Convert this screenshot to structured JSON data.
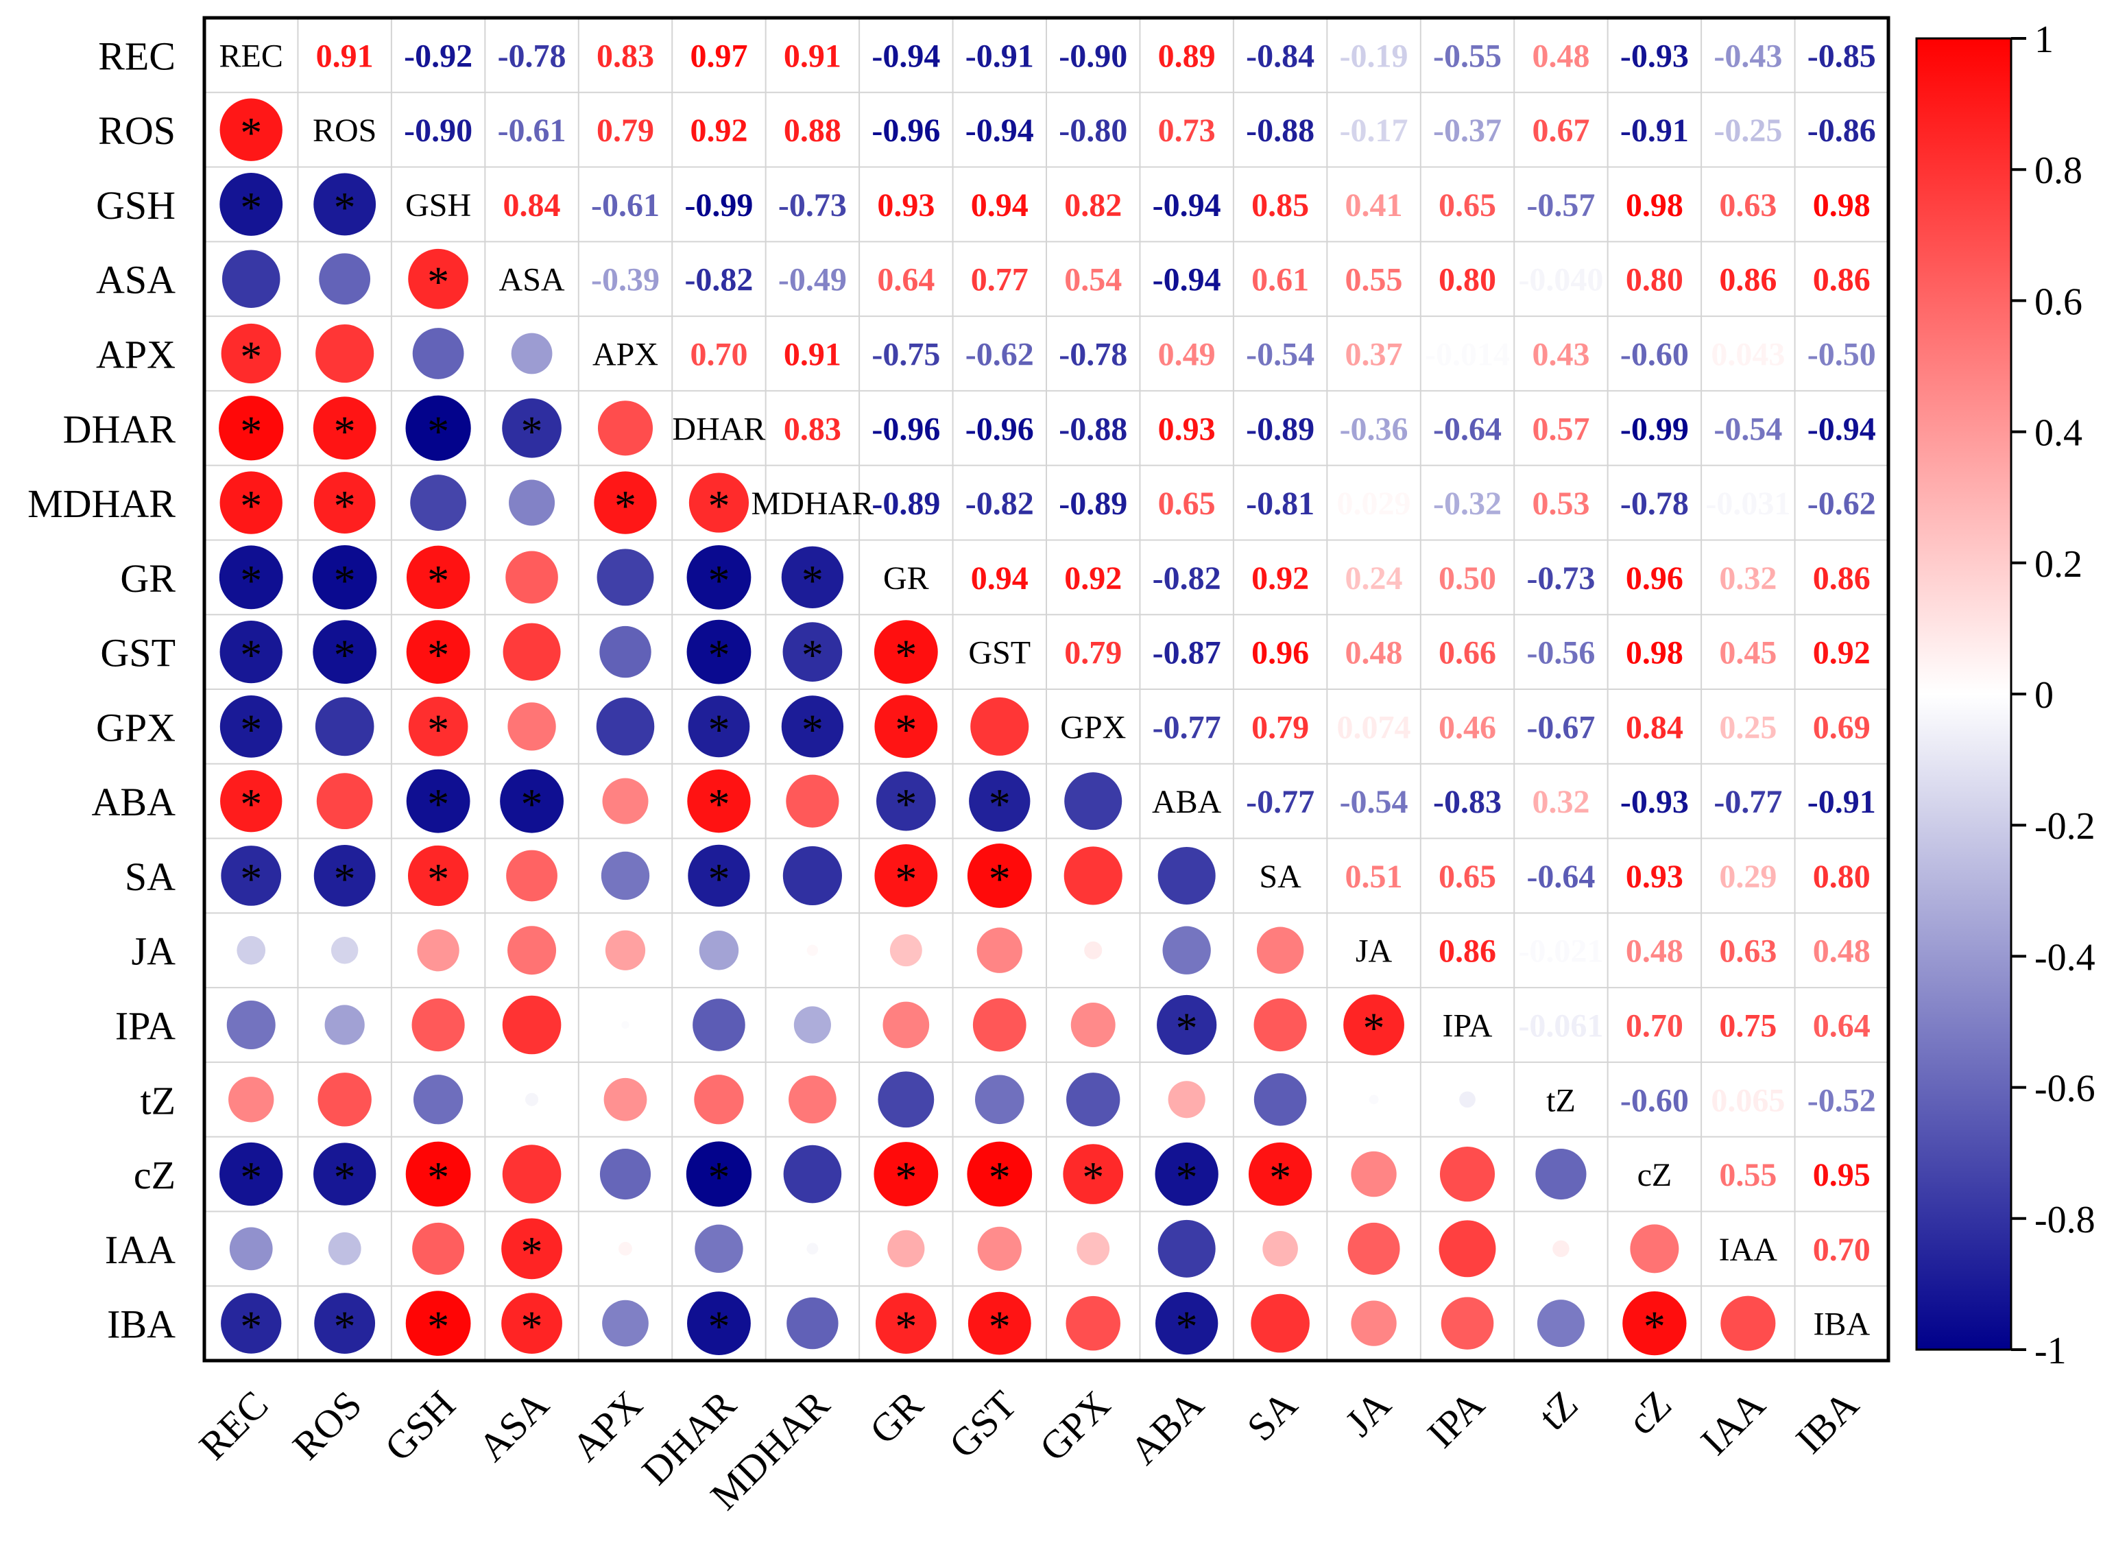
{
  "chart_data": {
    "type": "heatmap",
    "title": "",
    "variables": [
      "REC",
      "ROS",
      "GSH",
      "ASA",
      "APX",
      "DHAR",
      "MDHAR",
      "GR",
      "GST",
      "GPX",
      "ABA",
      "SA",
      "JA",
      "IPA",
      "tZ",
      "cZ",
      "IAA",
      "IBA"
    ],
    "upper_labels": [
      [
        "0.91",
        "-0.92",
        "-0.78",
        "0.83",
        "0.97",
        "0.91",
        "-0.94",
        "-0.91",
        "-0.90",
        "0.89",
        "-0.84",
        "-0.19",
        "-0.55",
        "0.48",
        "-0.93",
        "-0.43",
        "-0.85"
      ],
      [
        "-0.90",
        "-0.61",
        "0.79",
        "0.92",
        "0.88",
        "-0.96",
        "-0.94",
        "-0.80",
        "0.73",
        "-0.88",
        "-0.17",
        "-0.37",
        "0.67",
        "-0.91",
        "-0.25",
        "-0.86"
      ],
      [
        "0.84",
        "-0.61",
        "-0.99",
        "-0.73",
        "0.93",
        "0.94",
        "0.82",
        "-0.94",
        "0.85",
        "0.41",
        "0.65",
        "-0.57",
        "0.98",
        "0.63",
        "0.98"
      ],
      [
        "-0.39",
        "-0.82",
        "-0.49",
        "0.64",
        "0.77",
        "0.54",
        "-0.94",
        "0.61",
        "0.55",
        "0.80",
        "-0.040",
        "0.80",
        "0.86",
        "0.86"
      ],
      [
        "0.70",
        "0.91",
        "-0.75",
        "-0.62",
        "-0.78",
        "0.49",
        "-0.54",
        "0.37",
        "-0.014",
        "0.43",
        "-0.60",
        "0.043",
        "-0.50"
      ],
      [
        "0.83",
        "-0.96",
        "-0.96",
        "-0.88",
        "0.93",
        "-0.89",
        "-0.36",
        "-0.64",
        "0.57",
        "-0.99",
        "-0.54",
        "-0.94"
      ],
      [
        "-0.89",
        "-0.82",
        "-0.89",
        "0.65",
        "-0.81",
        "0.029",
        "-0.32",
        "0.53",
        "-0.78",
        "-0.031",
        "-0.62"
      ],
      [
        "0.94",
        "0.92",
        "-0.82",
        "0.92",
        "0.24",
        "0.50",
        "-0.73",
        "0.96",
        "0.32",
        "0.86"
      ],
      [
        "0.79",
        "-0.87",
        "0.96",
        "0.48",
        "0.66",
        "-0.56",
        "0.98",
        "0.45",
        "0.92"
      ],
      [
        "-0.77",
        "0.79",
        "0.074",
        "0.46",
        "-0.67",
        "0.84",
        "0.25",
        "0.69"
      ],
      [
        "-0.77",
        "-0.54",
        "-0.83",
        "0.32",
        "-0.93",
        "-0.77",
        "-0.91"
      ],
      [
        "0.51",
        "0.65",
        "-0.64",
        "0.93",
        "0.29",
        "0.80"
      ],
      [
        "0.86",
        "-0.021",
        "0.48",
        "0.63",
        "0.48"
      ],
      [
        "-0.061",
        "0.70",
        "0.75",
        "0.64"
      ],
      [
        "-0.60",
        "0.065",
        "-0.52"
      ],
      [
        "0.55",
        "0.95"
      ],
      [
        "0.70"
      ]
    ],
    "significance_threshold": 0.82,
    "colorbar": {
      "range": [
        -1,
        1
      ],
      "ticks": [
        "1",
        "0.8",
        "0.6",
        "0.4",
        "0.2",
        "0",
        "-0.2",
        "-0.4",
        "-0.6",
        "-0.8",
        "-1"
      ],
      "low_color": "#00008b",
      "mid_color": "#ffffff",
      "high_color": "#ff0000"
    },
    "marker": "*"
  }
}
